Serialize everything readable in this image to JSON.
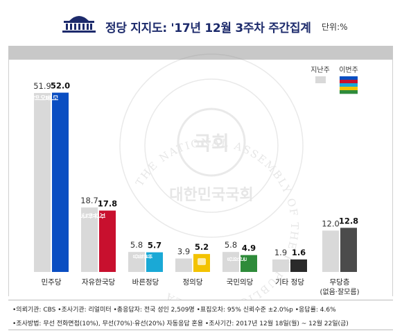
{
  "header": {
    "title": "정당 지지도: '17년 12월 3주차 주간집계",
    "unit": "단위:%"
  },
  "watermark": {
    "ring_text": "THE NATIONAL ASSEMBLY OF THE REPUBLIC OF KOREA",
    "seal_center": "국회",
    "seal_bottom": "대한민국국회"
  },
  "chart_data": {
    "type": "bar",
    "categories": [
      "민주당",
      "자유한국당",
      "바른정당",
      "정의당",
      "국민의당",
      "기타 정당",
      "무당층"
    ],
    "category_sublabels": [
      "",
      "",
      "",
      "",
      "",
      "",
      "(없음·잘모름)"
    ],
    "series": [
      {
        "name": "지난주",
        "values": [
          51.9,
          18.7,
          5.8,
          3.9,
          5.8,
          1.9,
          12.0
        ],
        "color": "#d9d9d9"
      },
      {
        "name": "이번주",
        "values": [
          52.0,
          17.8,
          5.7,
          5.2,
          4.9,
          1.6,
          12.8
        ],
        "colors": [
          "#0a4ec2",
          "#c8102e",
          "#1aa9d6",
          "#f3c300",
          "#2e8b3a",
          "#2a2a2a",
          "#4b4b4b"
        ]
      }
    ],
    "value_labels": [
      [
        "51.9",
        "52.0"
      ],
      [
        "18.7",
        "17.8"
      ],
      [
        "5.8",
        "5.7"
      ],
      [
        "3.9",
        "5.2"
      ],
      [
        "5.8",
        "4.9"
      ],
      [
        "1.9",
        "1.6"
      ],
      [
        "12.0",
        "12.8"
      ]
    ],
    "bar_logos": [
      "더불어민주당",
      "자유한국당",
      "바른정당",
      "",
      "국민의당",
      "",
      ""
    ],
    "legend_position": "top-right",
    "legend_swatch_stripes": [
      "#0a4ec2",
      "#c8102e",
      "#1aa9d6",
      "#f3c300",
      "#2e8b3a"
    ]
  },
  "footer": {
    "line1": "•의뢰기관: CBS  •조사기관: 리얼미터  •총응답자: 전국 성인 2,509명  •표집오차: 95% 신뢰수준 ±2.0%p  •응답률: 4.6%",
    "line2": "•조사방법: 무선 전화면접(10%), 무선(70%)·유선(20%) 자동응답 혼용  •조사기간: 2017년 12월 18일(월) ~ 12월 22일(금)"
  }
}
